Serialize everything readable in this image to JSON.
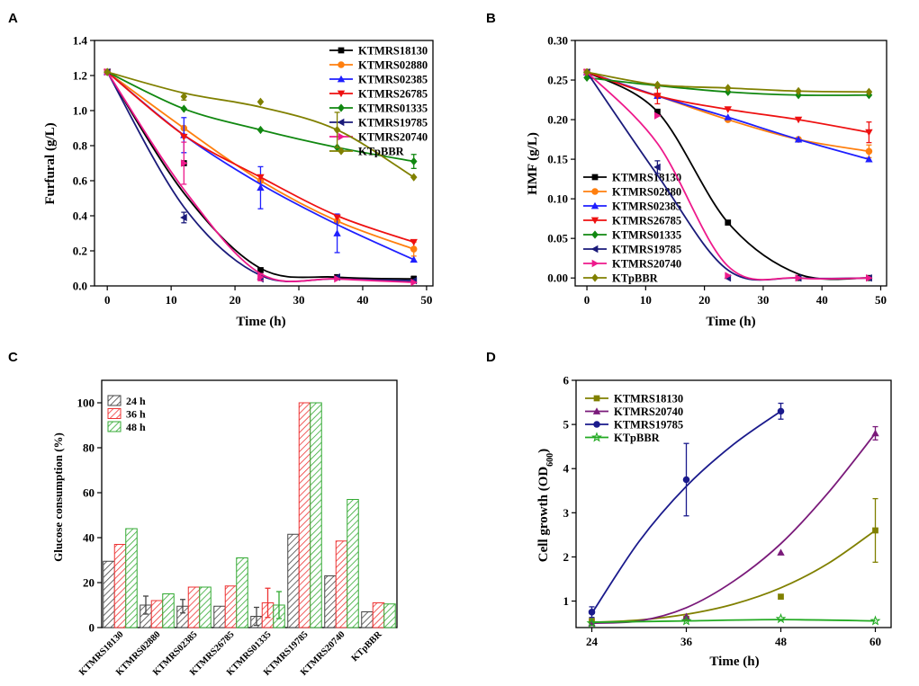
{
  "panels": {
    "A": {
      "letter": "A",
      "chart_data": {
        "type": "line",
        "xlabel": "Time (h)",
        "ylabel": "Furfural (g/L)",
        "xlim": [
          -2,
          51
        ],
        "ylim": [
          0,
          1.4
        ],
        "xticks": [
          0,
          10,
          20,
          30,
          40,
          50
        ],
        "yticks": [
          0.0,
          0.2,
          0.4,
          0.6,
          0.8,
          1.0,
          1.2,
          1.4
        ],
        "ytick_labels": [
          "0.0",
          "0.2",
          "0.4",
          "0.6",
          "0.8",
          "1.0",
          "1.2",
          "1.4"
        ],
        "x": [
          0,
          12,
          24,
          36,
          48
        ],
        "series": [
          {
            "name": "KTMRS18130",
            "color": "#000000",
            "marker": "square",
            "points": [
              1.22,
              0.7,
              0.09,
              0.05,
              0.04
            ],
            "err": [
              0,
              0,
              0,
              0,
              0.015
            ],
            "curve": [
              1.22,
              0.53,
              0.1,
              0.05,
              0.04
            ]
          },
          {
            "name": "KTMRS02880",
            "color": "#ff7f0e",
            "marker": "circle",
            "points": [
              1.22,
              0.9,
              0.6,
              0.37,
              0.21
            ],
            "err": [
              0,
              0,
              0,
              0,
              0.04
            ],
            "curve": [
              1.22,
              0.9,
              0.6,
              0.37,
              0.21
            ]
          },
          {
            "name": "KTMRS02385",
            "color": "#1f1fff",
            "marker": "triangle-up",
            "points": [
              1.22,
              0.86,
              0.56,
              0.3,
              0.15
            ],
            "err": [
              0,
              0.1,
              0.12,
              0.11,
              0
            ],
            "curve": [
              1.22,
              0.86,
              0.58,
              0.35,
              0.15
            ]
          },
          {
            "name": "KTMRS26785",
            "color": "#ee1111",
            "marker": "triangle-down",
            "points": [
              1.22,
              0.85,
              0.62,
              0.39,
              0.25
            ],
            "err": [
              0,
              0,
              0,
              0,
              0
            ],
            "curve": [
              1.22,
              0.86,
              0.62,
              0.4,
              0.25
            ]
          },
          {
            "name": "KTMRS01335",
            "color": "#118811",
            "marker": "diamond",
            "points": [
              1.22,
              1.01,
              0.89,
              0.79,
              0.71
            ],
            "err": [
              0,
              0,
              0,
              0,
              0.04
            ],
            "curve": [
              1.22,
              1.01,
              0.89,
              0.79,
              0.71
            ]
          },
          {
            "name": "KTMRS19785",
            "color": "#1a1a7a",
            "marker": "triangle-left",
            "points": [
              1.22,
              0.39,
              0.04,
              0.05,
              0.03
            ],
            "err": [
              0,
              0.03,
              0,
              0,
              0
            ],
            "curve": [
              1.22,
              0.45,
              0.06,
              0.04,
              0.03
            ]
          },
          {
            "name": "KTMRS20740",
            "color": "#ee1a8c",
            "marker": "triangle-right",
            "points": [
              1.22,
              0.7,
              0.05,
              0.04,
              0.02
            ],
            "err": [
              0,
              0.12,
              0.02,
              0,
              0
            ],
            "curve": [
              1.22,
              0.55,
              0.07,
              0.04,
              0.02
            ]
          },
          {
            "name": "KTpBBR",
            "color": "#808000",
            "marker": "diamond",
            "points": [
              1.22,
              1.08,
              1.05,
              0.89,
              0.62
            ],
            "err": [
              0,
              0.02,
              0,
              0.1,
              0
            ],
            "curve": [
              1.22,
              1.1,
              1.02,
              0.89,
              0.62
            ]
          }
        ]
      }
    },
    "B": {
      "letter": "B",
      "chart_data": {
        "type": "line",
        "xlabel": "Time (h)",
        "ylabel": "HMF (g/L)",
        "xlim": [
          -2,
          51
        ],
        "ylim": [
          -0.01,
          0.3
        ],
        "xticks": [
          0,
          10,
          20,
          30,
          40,
          50
        ],
        "yticks": [
          0.0,
          0.05,
          0.1,
          0.15,
          0.2,
          0.25,
          0.3
        ],
        "ytick_labels": [
          "0.00",
          "0.05",
          "0.10",
          "0.15",
          "0.20",
          "0.25",
          "0.30"
        ],
        "x": [
          0,
          12,
          24,
          36,
          48
        ],
        "series": [
          {
            "name": "KTMRS18130",
            "color": "#000000",
            "marker": "square",
            "points": [
              0.26,
              0.21,
              0.07,
              0.0,
              0.0
            ],
            "err": [
              0,
              0,
              0,
              0,
              0
            ],
            "curve": [
              0.26,
              0.21,
              0.07,
              0.005,
              0.0
            ]
          },
          {
            "name": "KTMRS02880",
            "color": "#ff7f0e",
            "marker": "circle",
            "points": [
              0.26,
              0.23,
              0.2,
              0.175,
              0.16
            ],
            "err": [
              0,
              0,
              0,
              0,
              0.008
            ],
            "curve": [
              0.26,
              0.23,
              0.2,
              0.175,
              0.16
            ]
          },
          {
            "name": "KTMRS02385",
            "color": "#1f1fff",
            "marker": "triangle-up",
            "points": [
              0.26,
              0.23,
              0.203,
              0.175,
              0.15
            ],
            "err": [
              0,
              0,
              0,
              0,
              0
            ],
            "curve": [
              0.26,
              0.23,
              0.203,
              0.175,
              0.15
            ]
          },
          {
            "name": "KTMRS26785",
            "color": "#ee1111",
            "marker": "triangle-down",
            "points": [
              0.26,
              0.23,
              0.213,
              0.2,
              0.184
            ],
            "err": [
              0,
              0.01,
              0,
              0,
              0.013
            ],
            "curve": [
              0.26,
              0.23,
              0.213,
              0.2,
              0.184
            ]
          },
          {
            "name": "KTMRS01335",
            "color": "#118811",
            "marker": "diamond",
            "points": [
              0.253,
              0.243,
              0.235,
              0.231,
              0.231
            ],
            "err": [
              0,
              0,
              0,
              0,
              0
            ],
            "curve": [
              0.253,
              0.243,
              0.235,
              0.231,
              0.231
            ]
          },
          {
            "name": "KTMRS19785",
            "color": "#1a1a7a",
            "marker": "triangle-left",
            "points": [
              0.26,
              0.14,
              0.0,
              0.0,
              0.0
            ],
            "err": [
              0,
              0.008,
              0,
              0,
              0
            ],
            "curve": [
              0.26,
              0.13,
              0.01,
              0.0,
              0.0
            ]
          },
          {
            "name": "KTMRS20740",
            "color": "#ee1a8c",
            "marker": "triangle-right",
            "points": [
              0.26,
              0.205,
              0.003,
              0.0,
              0.0
            ],
            "err": [
              0,
              0,
              0,
              0,
              0
            ],
            "curve": [
              0.26,
              0.17,
              0.015,
              0.0,
              0.0
            ]
          },
          {
            "name": "KTpBBR",
            "color": "#808000",
            "marker": "diamond",
            "points": [
              0.26,
              0.244,
              0.24,
              0.236,
              0.235
            ],
            "err": [
              0,
              0,
              0,
              0,
              0
            ],
            "curve": [
              0.26,
              0.244,
              0.24,
              0.236,
              0.235
            ]
          }
        ]
      }
    },
    "C": {
      "letter": "C",
      "chart_data": {
        "type": "bar",
        "ylabel": "Glucose consumption (%)",
        "ylim": [
          0,
          110
        ],
        "yticks": [
          0,
          20,
          40,
          60,
          80,
          100
        ],
        "ytick_labels": [
          "0",
          "20",
          "40",
          "60",
          "80",
          "100"
        ],
        "categories": [
          "KTMRS18130",
          "KTMRS02880",
          "KTMRS02385",
          "KTMRS26785",
          "KTMRS01335",
          "KTMRS19785",
          "KTMRS20740",
          "KTpBBR"
        ],
        "series": [
          {
            "name": "24 h",
            "color": "#444444",
            "values": [
              29.5,
              10,
              9.5,
              9.5,
              5,
              41.5,
              23,
              7
            ],
            "err": [
              0,
              4,
              3,
              0,
              4,
              0,
              0,
              0
            ]
          },
          {
            "name": "36 h",
            "color": "#ee3333",
            "values": [
              37,
              12,
              18,
              18.5,
              11,
              100,
              38.5,
              11
            ],
            "err": [
              0,
              0,
              0,
              0,
              6.5,
              0,
              0,
              0
            ]
          },
          {
            "name": "48 h",
            "color": "#33aa33",
            "values": [
              44,
              15,
              18,
              31,
              10,
              100,
              57,
              10.5
            ],
            "err": [
              0,
              0,
              0,
              0,
              6,
              0,
              0,
              0
            ]
          }
        ]
      }
    },
    "D": {
      "letter": "D",
      "chart_data": {
        "type": "line",
        "xlabel": "Time (h)",
        "ylabel": "Cell growth (OD600)",
        "ylabel_main": "Cell growth (OD",
        "ylabel_sub": "600",
        "ylabel_end": ")",
        "xlim": [
          22,
          62
        ],
        "ylim": [
          0.4,
          6.0
        ],
        "xticks": [
          24,
          36,
          48,
          60
        ],
        "yticks": [
          1,
          2,
          3,
          4,
          5,
          6
        ],
        "ytick_labels": [
          "1",
          "2",
          "3",
          "4",
          "5",
          "6"
        ],
        "series": [
          {
            "name": "KTMRS18130",
            "color": "#808000",
            "marker": "square",
            "x": [
              24,
              36,
              48,
              60
            ],
            "points": [
              0.55,
              0.6,
              1.1,
              2.6
            ],
            "err": [
              0,
              0,
              0,
              0.72
            ],
            "curve_x": [
              24,
              30,
              36,
              42,
              48,
              54,
              60
            ],
            "curve": [
              0.52,
              0.57,
              0.7,
              0.93,
              1.3,
              1.85,
              2.6
            ]
          },
          {
            "name": "KTMRS20740",
            "color": "#7a1a7a",
            "marker": "triangle-up",
            "x": [
              24,
              36,
              48,
              60
            ],
            "points": [
              0.5,
              0.65,
              2.1,
              4.8
            ],
            "err": [
              0,
              0,
              0,
              0.15
            ],
            "curve_x": [
              24,
              30,
              36,
              42,
              48,
              54,
              60
            ],
            "curve": [
              0.5,
              0.55,
              0.85,
              1.45,
              2.3,
              3.45,
              4.8
            ]
          },
          {
            "name": "KTMRS19785",
            "color": "#1a1a8c",
            "marker": "circle",
            "x": [
              24,
              36,
              48
            ],
            "points": [
              0.75,
              3.75,
              5.3
            ],
            "err": [
              0.12,
              0.82,
              0.18
            ],
            "curve_x": [
              24,
              30,
              36,
              42,
              48
            ],
            "curve": [
              0.72,
              2.35,
              3.6,
              4.55,
              5.3
            ]
          },
          {
            "name": "KTpBBR",
            "color": "#22aa22",
            "marker": "star",
            "x": [
              24,
              36,
              48,
              60
            ],
            "points": [
              0.5,
              0.55,
              0.6,
              0.55
            ],
            "err": [
              0,
              0,
              0,
              0
            ],
            "curve_x": [
              24,
              36,
              48,
              60
            ],
            "curve": [
              0.52,
              0.55,
              0.58,
              0.55
            ]
          }
        ]
      }
    }
  }
}
